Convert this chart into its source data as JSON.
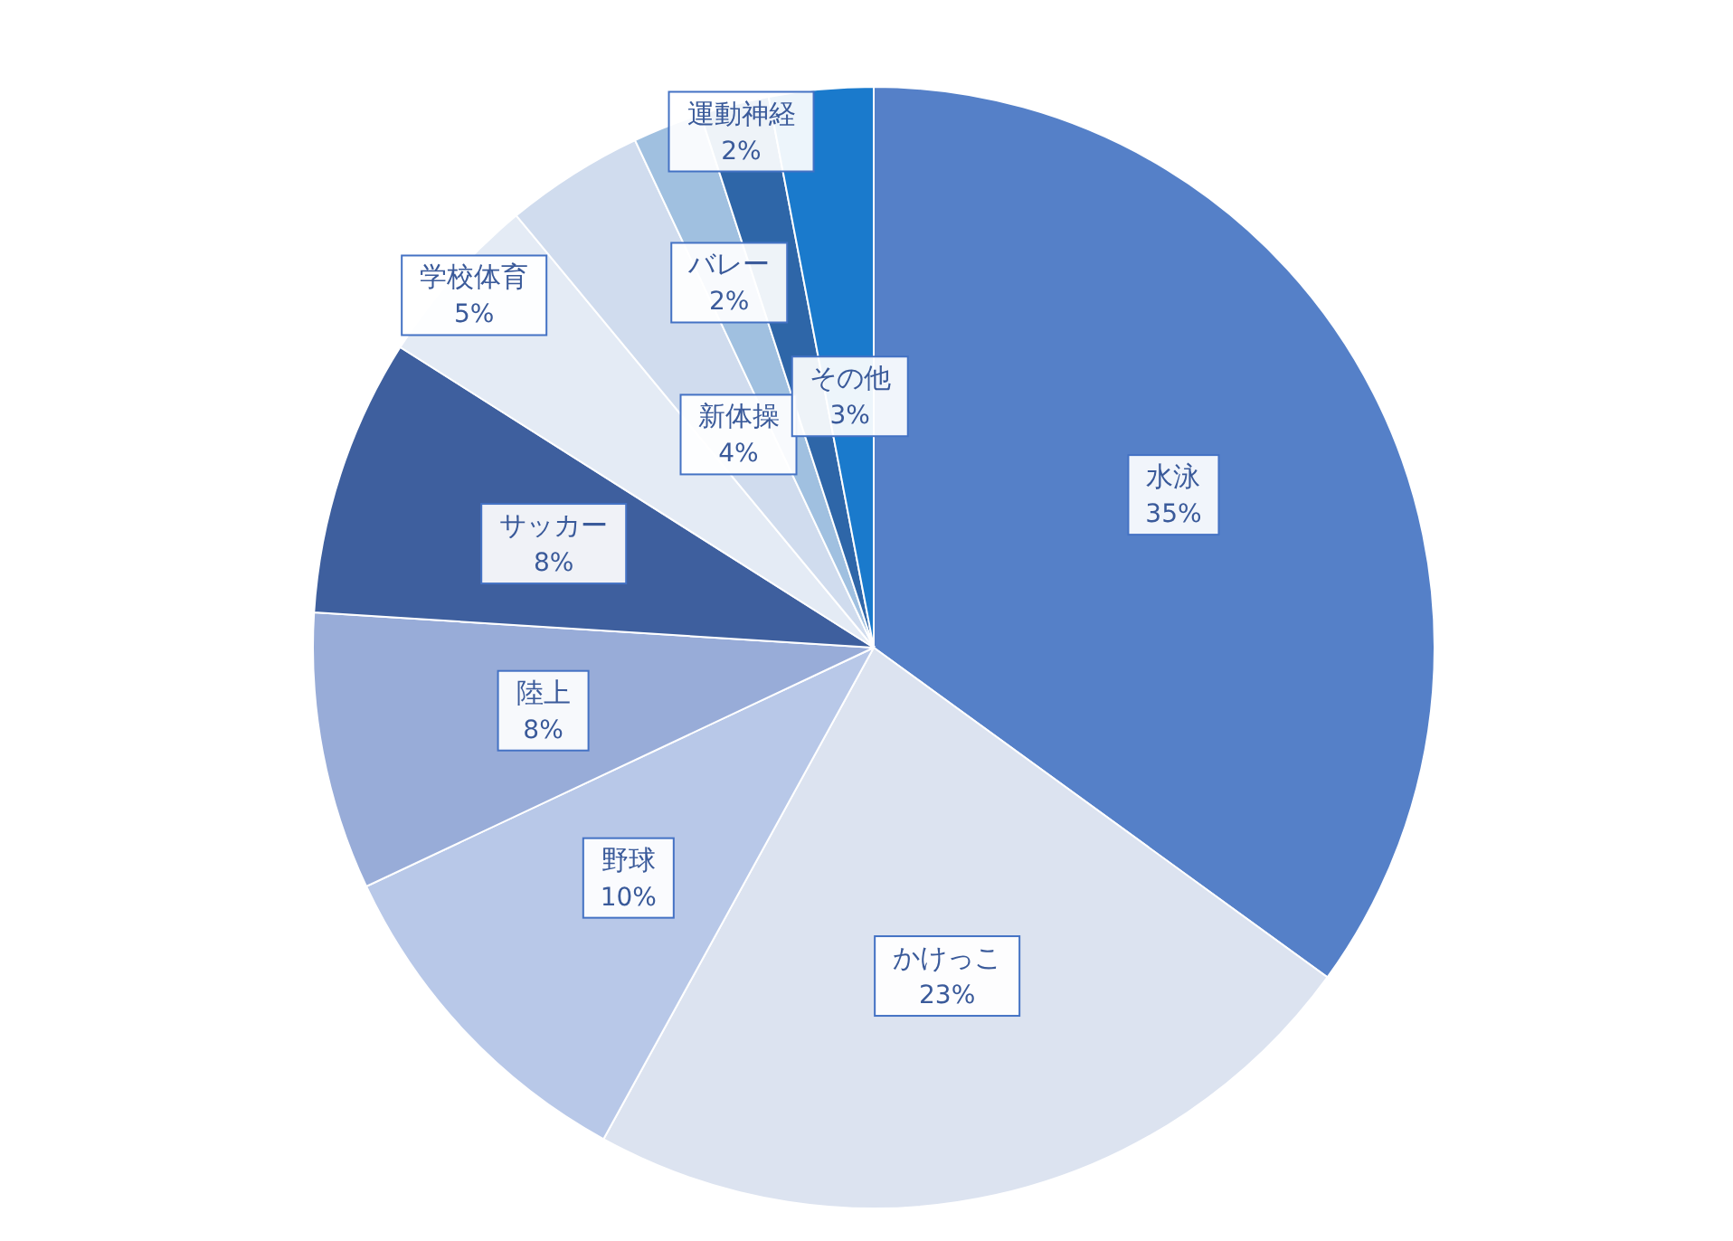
{
  "chart_data": {
    "type": "pie",
    "categories": [
      "水泳",
      "かけっこ",
      "野球",
      "陸上",
      "サッカー",
      "学校体育",
      "新体操",
      "バレー",
      "運動神経",
      "その他"
    ],
    "values": [
      35,
      23,
      10,
      8,
      8,
      5,
      4,
      2,
      2,
      3
    ],
    "value_labels": [
      "35%",
      "23%",
      "10%",
      "8%",
      "8%",
      "5%",
      "4%",
      "2%",
      "2%",
      "3%"
    ],
    "colors": [
      "#5580c8",
      "#dce3f0",
      "#b8c8e8",
      "#98acd8",
      "#3e5f9e",
      "#e4ebf5",
      "#d0dcee",
      "#a0c0e0",
      "#2e66a8",
      "#1a7acc"
    ],
    "legend": false
  }
}
